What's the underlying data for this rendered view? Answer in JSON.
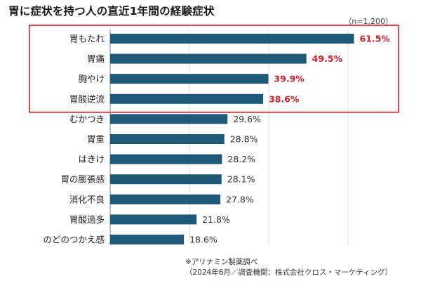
{
  "title": "胃に症状を持つ人の直近1年間の経験症状",
  "sample_size": "（n=1,200）",
  "notes": {
    "line1": "※アリナミン製薬調べ",
    "line2": "（2024年6月／調査機関：株式会社クロス・マーケティング）"
  },
  "colors": {
    "bar": "#1e5a78",
    "highlight_text": "#d0202a",
    "text": "#222222",
    "highlight_box": "#d0202a",
    "grid": "#cfd6db"
  },
  "chart_data": {
    "type": "bar",
    "orientation": "horizontal",
    "title": "胃に症状を持つ人の直近1年間の経験症状",
    "xlabel": "",
    "ylabel": "",
    "xlim": [
      0,
      70
    ],
    "unit": "%",
    "grid": true,
    "highlighted_count": 4,
    "categories": [
      "胃もたれ",
      "胃痛",
      "胸やけ",
      "胃酸逆流",
      "むかつき",
      "胃重",
      "はきけ",
      "胃の膨張感",
      "消化不良",
      "胃酸過多",
      "のどのつかえ感"
    ],
    "values": [
      61.5,
      49.5,
      39.9,
      38.6,
      29.6,
      28.8,
      28.2,
      28.1,
      27.8,
      21.8,
      18.6
    ],
    "value_labels": [
      "61.5%",
      "49.5%",
      "39.9%",
      "38.6%",
      "29.6%",
      "28.8%",
      "28.2%",
      "28.1%",
      "27.8%",
      "21.8%",
      "18.6%"
    ]
  }
}
